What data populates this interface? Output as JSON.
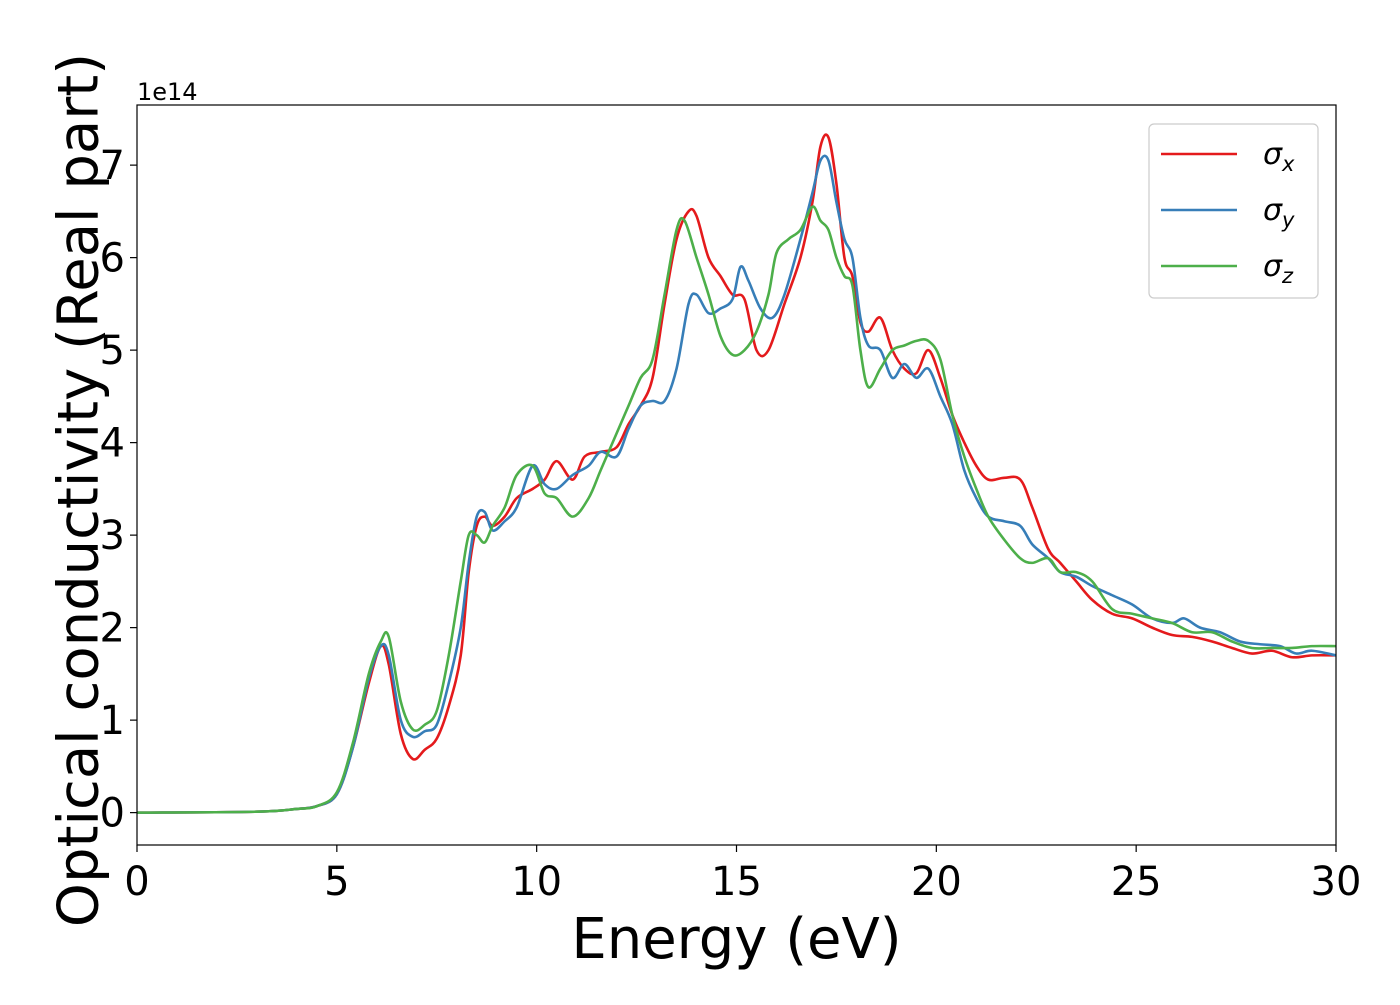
{
  "chart_data": {
    "type": "line",
    "xlabel": "Energy (eV)",
    "ylabel": "Optical conductivity (Real part)",
    "y_offset_label": "1e14",
    "xlim": [
      0,
      30
    ],
    "ylim": [
      -0.35,
      7.65
    ],
    "y_scale_exponent": 14,
    "x_ticks": [
      0,
      5,
      10,
      15,
      20,
      25,
      30
    ],
    "x_tick_labels": [
      "0",
      "5",
      "10",
      "15",
      "20",
      "25",
      "30"
    ],
    "y_ticks": [
      0,
      1,
      2,
      3,
      4,
      5,
      6,
      7
    ],
    "y_tick_labels": [
      "0",
      "1",
      "2",
      "3",
      "4",
      "5",
      "6",
      "7"
    ],
    "grid": false,
    "legend_position": "upper-right",
    "series": [
      {
        "name": "σ",
        "sub": "x",
        "color": "#e41a1c",
        "points": [
          [
            0,
            0
          ],
          [
            3,
            0.01
          ],
          [
            4,
            0.04
          ],
          [
            4.5,
            0.07
          ],
          [
            5.0,
            0.2
          ],
          [
            5.4,
            0.7
          ],
          [
            5.8,
            1.4
          ],
          [
            6.1,
            1.8
          ],
          [
            6.3,
            1.6
          ],
          [
            6.6,
            0.85
          ],
          [
            6.9,
            0.58
          ],
          [
            7.2,
            0.68
          ],
          [
            7.5,
            0.8
          ],
          [
            7.8,
            1.15
          ],
          [
            8.1,
            1.7
          ],
          [
            8.3,
            2.6
          ],
          [
            8.5,
            3.1
          ],
          [
            8.7,
            3.2
          ],
          [
            8.9,
            3.1
          ],
          [
            9.2,
            3.2
          ],
          [
            9.5,
            3.4
          ],
          [
            9.9,
            3.5
          ],
          [
            10.2,
            3.6
          ],
          [
            10.5,
            3.8
          ],
          [
            10.9,
            3.6
          ],
          [
            11.2,
            3.85
          ],
          [
            11.6,
            3.9
          ],
          [
            12.0,
            3.95
          ],
          [
            12.3,
            4.2
          ],
          [
            12.6,
            4.4
          ],
          [
            12.9,
            4.7
          ],
          [
            13.2,
            5.5
          ],
          [
            13.5,
            6.2
          ],
          [
            13.8,
            6.5
          ],
          [
            14.0,
            6.45
          ],
          [
            14.3,
            6.0
          ],
          [
            14.6,
            5.8
          ],
          [
            14.9,
            5.6
          ],
          [
            15.2,
            5.55
          ],
          [
            15.5,
            5.0
          ],
          [
            15.8,
            5.0
          ],
          [
            16.2,
            5.5
          ],
          [
            16.6,
            6.0
          ],
          [
            16.9,
            6.6
          ],
          [
            17.1,
            7.2
          ],
          [
            17.3,
            7.3
          ],
          [
            17.5,
            6.8
          ],
          [
            17.7,
            6.0
          ],
          [
            17.9,
            5.8
          ],
          [
            18.1,
            5.3
          ],
          [
            18.3,
            5.2
          ],
          [
            18.6,
            5.35
          ],
          [
            18.9,
            5.0
          ],
          [
            19.2,
            4.8
          ],
          [
            19.5,
            4.75
          ],
          [
            19.8,
            5.0
          ],
          [
            20.1,
            4.7
          ],
          [
            20.4,
            4.3
          ],
          [
            20.7,
            4.0
          ],
          [
            21.0,
            3.75
          ],
          [
            21.3,
            3.6
          ],
          [
            21.7,
            3.62
          ],
          [
            22.1,
            3.6
          ],
          [
            22.4,
            3.3
          ],
          [
            22.8,
            2.85
          ],
          [
            23.1,
            2.7
          ],
          [
            23.5,
            2.5
          ],
          [
            23.9,
            2.3
          ],
          [
            24.4,
            2.15
          ],
          [
            24.9,
            2.1
          ],
          [
            25.4,
            2.0
          ],
          [
            25.9,
            1.92
          ],
          [
            26.4,
            1.9
          ],
          [
            26.9,
            1.85
          ],
          [
            27.4,
            1.78
          ],
          [
            27.9,
            1.72
          ],
          [
            28.4,
            1.75
          ],
          [
            28.9,
            1.68
          ],
          [
            29.4,
            1.7
          ],
          [
            30,
            1.7
          ]
        ]
      },
      {
        "name": "σ",
        "sub": "y",
        "color": "#377eb8",
        "points": [
          [
            0,
            0
          ],
          [
            3,
            0.01
          ],
          [
            4,
            0.04
          ],
          [
            4.5,
            0.07
          ],
          [
            5.0,
            0.2
          ],
          [
            5.4,
            0.7
          ],
          [
            5.8,
            1.45
          ],
          [
            6.1,
            1.8
          ],
          [
            6.3,
            1.7
          ],
          [
            6.6,
            1.0
          ],
          [
            6.9,
            0.82
          ],
          [
            7.2,
            0.88
          ],
          [
            7.5,
            0.95
          ],
          [
            7.8,
            1.4
          ],
          [
            8.1,
            2.0
          ],
          [
            8.3,
            2.7
          ],
          [
            8.5,
            3.2
          ],
          [
            8.7,
            3.25
          ],
          [
            8.9,
            3.05
          ],
          [
            9.2,
            3.15
          ],
          [
            9.5,
            3.3
          ],
          [
            9.9,
            3.75
          ],
          [
            10.2,
            3.55
          ],
          [
            10.5,
            3.5
          ],
          [
            10.9,
            3.65
          ],
          [
            11.3,
            3.75
          ],
          [
            11.6,
            3.9
          ],
          [
            12.0,
            3.85
          ],
          [
            12.3,
            4.15
          ],
          [
            12.6,
            4.4
          ],
          [
            12.9,
            4.45
          ],
          [
            13.2,
            4.45
          ],
          [
            13.5,
            4.8
          ],
          [
            13.8,
            5.5
          ],
          [
            14.0,
            5.6
          ],
          [
            14.3,
            5.4
          ],
          [
            14.6,
            5.45
          ],
          [
            14.9,
            5.55
          ],
          [
            15.1,
            5.9
          ],
          [
            15.3,
            5.75
          ],
          [
            15.6,
            5.45
          ],
          [
            15.9,
            5.35
          ],
          [
            16.2,
            5.6
          ],
          [
            16.6,
            6.2
          ],
          [
            16.9,
            6.7
          ],
          [
            17.1,
            7.05
          ],
          [
            17.3,
            7.05
          ],
          [
            17.5,
            6.6
          ],
          [
            17.7,
            6.2
          ],
          [
            17.9,
            6.0
          ],
          [
            18.1,
            5.35
          ],
          [
            18.3,
            5.05
          ],
          [
            18.6,
            5.0
          ],
          [
            18.9,
            4.7
          ],
          [
            19.2,
            4.85
          ],
          [
            19.5,
            4.7
          ],
          [
            19.8,
            4.8
          ],
          [
            20.1,
            4.5
          ],
          [
            20.4,
            4.2
          ],
          [
            20.7,
            3.7
          ],
          [
            21.0,
            3.4
          ],
          [
            21.3,
            3.2
          ],
          [
            21.7,
            3.15
          ],
          [
            22.1,
            3.1
          ],
          [
            22.4,
            2.9
          ],
          [
            22.8,
            2.75
          ],
          [
            23.1,
            2.6
          ],
          [
            23.5,
            2.55
          ],
          [
            23.9,
            2.45
          ],
          [
            24.4,
            2.35
          ],
          [
            24.9,
            2.25
          ],
          [
            25.4,
            2.1
          ],
          [
            25.9,
            2.05
          ],
          [
            26.2,
            2.1
          ],
          [
            26.6,
            2.0
          ],
          [
            27.1,
            1.95
          ],
          [
            27.6,
            1.85
          ],
          [
            28.1,
            1.82
          ],
          [
            28.6,
            1.8
          ],
          [
            29.0,
            1.72
          ],
          [
            29.4,
            1.75
          ],
          [
            30,
            1.7
          ]
        ]
      },
      {
        "name": "σ",
        "sub": "z",
        "color": "#4daf4a",
        "points": [
          [
            0,
            0
          ],
          [
            3,
            0.01
          ],
          [
            4,
            0.04
          ],
          [
            4.5,
            0.07
          ],
          [
            5.0,
            0.22
          ],
          [
            5.4,
            0.75
          ],
          [
            5.8,
            1.5
          ],
          [
            6.1,
            1.85
          ],
          [
            6.3,
            1.9
          ],
          [
            6.6,
            1.2
          ],
          [
            6.9,
            0.9
          ],
          [
            7.2,
            0.95
          ],
          [
            7.5,
            1.1
          ],
          [
            7.8,
            1.7
          ],
          [
            8.1,
            2.5
          ],
          [
            8.3,
            3.0
          ],
          [
            8.5,
            3.0
          ],
          [
            8.7,
            2.92
          ],
          [
            8.9,
            3.1
          ],
          [
            9.2,
            3.3
          ],
          [
            9.5,
            3.65
          ],
          [
            9.9,
            3.75
          ],
          [
            10.2,
            3.45
          ],
          [
            10.5,
            3.4
          ],
          [
            10.9,
            3.2
          ],
          [
            11.3,
            3.4
          ],
          [
            11.6,
            3.7
          ],
          [
            12.0,
            4.1
          ],
          [
            12.3,
            4.4
          ],
          [
            12.6,
            4.7
          ],
          [
            12.9,
            4.9
          ],
          [
            13.2,
            5.6
          ],
          [
            13.5,
            6.3
          ],
          [
            13.7,
            6.4
          ],
          [
            14.0,
            6.0
          ],
          [
            14.3,
            5.6
          ],
          [
            14.6,
            5.15
          ],
          [
            14.9,
            4.95
          ],
          [
            15.2,
            5.0
          ],
          [
            15.5,
            5.2
          ],
          [
            15.8,
            5.6
          ],
          [
            16.0,
            6.05
          ],
          [
            16.3,
            6.2
          ],
          [
            16.6,
            6.3
          ],
          [
            16.9,
            6.55
          ],
          [
            17.1,
            6.4
          ],
          [
            17.3,
            6.3
          ],
          [
            17.5,
            6.0
          ],
          [
            17.7,
            5.8
          ],
          [
            17.9,
            5.7
          ],
          [
            18.1,
            5.0
          ],
          [
            18.3,
            4.6
          ],
          [
            18.6,
            4.8
          ],
          [
            18.9,
            5.0
          ],
          [
            19.2,
            5.05
          ],
          [
            19.5,
            5.1
          ],
          [
            19.8,
            5.1
          ],
          [
            20.1,
            4.9
          ],
          [
            20.4,
            4.3
          ],
          [
            20.7,
            3.85
          ],
          [
            21.0,
            3.5
          ],
          [
            21.3,
            3.2
          ],
          [
            21.7,
            2.95
          ],
          [
            22.1,
            2.75
          ],
          [
            22.4,
            2.7
          ],
          [
            22.8,
            2.75
          ],
          [
            23.1,
            2.6
          ],
          [
            23.5,
            2.6
          ],
          [
            23.9,
            2.5
          ],
          [
            24.4,
            2.2
          ],
          [
            24.9,
            2.15
          ],
          [
            25.4,
            2.1
          ],
          [
            25.9,
            2.05
          ],
          [
            26.4,
            1.95
          ],
          [
            26.9,
            1.95
          ],
          [
            27.4,
            1.85
          ],
          [
            27.9,
            1.78
          ],
          [
            28.4,
            1.78
          ],
          [
            28.9,
            1.78
          ],
          [
            29.4,
            1.8
          ],
          [
            30,
            1.8
          ]
        ]
      }
    ]
  }
}
